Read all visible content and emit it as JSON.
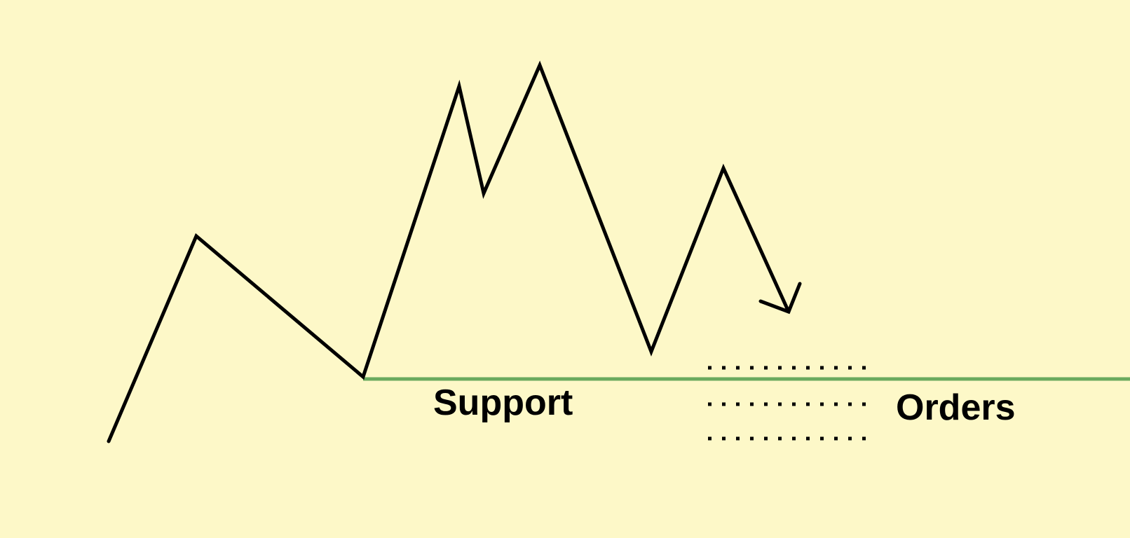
{
  "labels": {
    "support": "Support",
    "orders": "Orders"
  },
  "colors": {
    "background": "#fdf8c8",
    "price_line": "#000000",
    "support_line": "#6aaa5e",
    "order_dots": "#000000"
  },
  "icons": {
    "arrowhead": "arrowhead-down-right-icon"
  }
}
